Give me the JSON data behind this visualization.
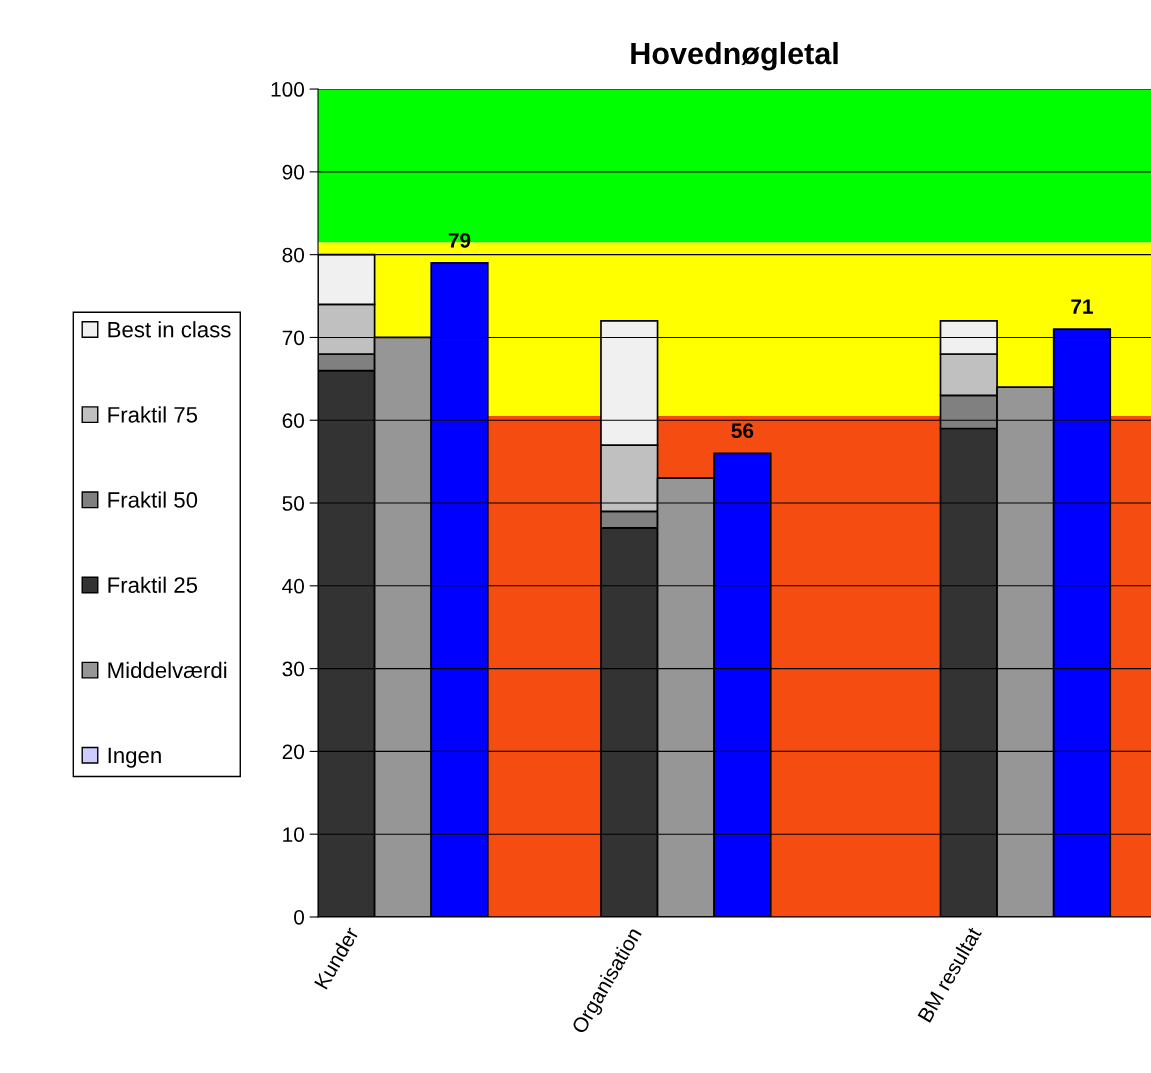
{
  "chart_data": {
    "type": "bar",
    "title": "Hovednøgletal",
    "categories": [
      "Kunder",
      null,
      null,
      null,
      null,
      "Organisation",
      null,
      null,
      null,
      null,
      null,
      "BM resultat",
      null,
      null
    ],
    "stacked": true,
    "series": [
      {
        "name": "Fraktil 25",
        "color": "#333333",
        "values": [
          66,
          null,
          null,
          null,
          null,
          47,
          null,
          null,
          null,
          null,
          null,
          59,
          null,
          null
        ]
      },
      {
        "name": "Fraktil 50",
        "color": "#808080",
        "values": [
          2,
          null,
          null,
          null,
          null,
          2,
          null,
          null,
          null,
          null,
          null,
          4,
          null,
          null
        ]
      },
      {
        "name": "Fraktil 75",
        "color": "#c0c0c0",
        "values": [
          6,
          null,
          null,
          null,
          null,
          8,
          null,
          null,
          null,
          null,
          null,
          5,
          null,
          null
        ]
      },
      {
        "name": "Best in class",
        "color": "#f0f0f0",
        "values": [
          6,
          null,
          null,
          null,
          null,
          15,
          null,
          null,
          null,
          null,
          null,
          4,
          null,
          null
        ]
      },
      {
        "name": "Middelværdi",
        "color": "#969696",
        "values": [
          null,
          70,
          null,
          null,
          null,
          null,
          53,
          null,
          null,
          null,
          null,
          null,
          64,
          null
        ]
      },
      {
        "name": "Ingen",
        "color": "#ccccff",
        "values": [
          null,
          null,
          null,
          null,
          null,
          null,
          null,
          null,
          null,
          null,
          null,
          null,
          null,
          null
        ]
      },
      {
        "color": "#0000ff",
        "values": [
          null,
          null,
          79,
          null,
          null,
          null,
          null,
          56,
          null,
          null,
          null,
          null,
          null,
          71
        ],
        "value_labels": [
          null,
          null,
          "79",
          null,
          null,
          null,
          null,
          "56",
          null,
          null,
          null,
          null,
          null,
          "71"
        ]
      }
    ],
    "ylim": [
      0,
      100
    ],
    "yticks": [
      0,
      10,
      20,
      30,
      40,
      50,
      60,
      70,
      80,
      90,
      100
    ],
    "bands": [
      {
        "axis": "y",
        "from": 0,
        "to": 60.5,
        "color": "#f54c12"
      },
      {
        "axis": "y",
        "from": 60.5,
        "to": 81.5,
        "color": "#ffff00"
      },
      {
        "axis": "y",
        "from": 81.5,
        "to": 100,
        "color": "#00ff00"
      }
    ],
    "grid": "y",
    "legend": "left"
  }
}
